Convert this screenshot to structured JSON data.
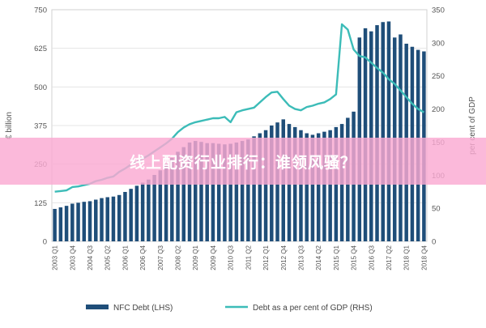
{
  "chart_data": {
    "type": "bar",
    "left_axis": {
      "label": "€ billion",
      "ylim": [
        0,
        750
      ],
      "ticks": [
        "0",
        "125",
        "250",
        "375",
        "500",
        "625",
        "750"
      ]
    },
    "right_axis": {
      "label": "per cent of GDP",
      "ylim": [
        0,
        350
      ],
      "ticks": [
        "0",
        "50",
        "100",
        "150",
        "200",
        "250",
        "300",
        "350"
      ]
    },
    "categories": [
      "2003 Q1",
      "2003 Q2",
      "2003 Q3",
      "2003 Q4",
      "2004 Q1",
      "2004 Q2",
      "2004 Q3",
      "2004 Q4",
      "2005 Q1",
      "2005 Q2",
      "2005 Q3",
      "2005 Q4",
      "2006 Q1",
      "2006 Q2",
      "2006 Q3",
      "2006 Q4",
      "2007 Q1",
      "2007 Q2",
      "2007 Q3",
      "2007 Q4",
      "2008 Q1",
      "2008 Q2",
      "2008 Q3",
      "2008 Q4",
      "2009 Q1",
      "2009 Q2",
      "2009 Q3",
      "2009 Q4",
      "2010 Q1",
      "2010 Q2",
      "2010 Q3",
      "2010 Q4",
      "2011 Q1",
      "2011 Q2",
      "2011 Q3",
      "2011 Q4",
      "2012 Q1",
      "2012 Q2",
      "2012 Q3",
      "2012 Q4",
      "2013 Q1",
      "2013 Q2",
      "2013 Q3",
      "2013 Q4",
      "2014 Q1",
      "2014 Q2",
      "2014 Q3",
      "2014 Q4",
      "2015 Q1",
      "2015 Q2",
      "2015 Q3",
      "2015 Q4",
      "2016 Q1",
      "2016 Q2",
      "2016 Q3",
      "2016 Q4",
      "2017 Q1",
      "2017 Q2",
      "2017 Q3",
      "2017 Q4",
      "2018 Q1",
      "2018 Q2",
      "2018 Q3",
      "2018 Q4"
    ],
    "x_tick_labels": [
      "2003 Q1",
      "2003 Q4",
      "2004 Q3",
      "2005 Q2",
      "2006 Q1",
      "2006 Q4",
      "2007 Q3",
      "2008 Q2",
      "2009 Q1",
      "2009 Q4",
      "2010 Q3",
      "2011 Q2",
      "2012 Q1",
      "2012 Q4",
      "2013 Q3",
      "2014 Q2",
      "2015 Q1",
      "2015 Q4",
      "2016 Q3",
      "2017 Q2",
      "2018 Q1",
      "2018 Q4"
    ],
    "series": [
      {
        "name": "NFC Debt (LHS)",
        "type": "bar",
        "axis": "left",
        "color": "#1f4e79",
        "values": [
          105,
          110,
          115,
          122,
          125,
          128,
          130,
          135,
          140,
          143,
          145,
          150,
          160,
          170,
          180,
          190,
          200,
          215,
          230,
          250,
          270,
          290,
          305,
          320,
          325,
          322,
          318,
          318,
          316,
          314,
          316,
          320,
          325,
          330,
          340,
          350,
          360,
          375,
          385,
          395,
          380,
          370,
          360,
          350,
          345,
          350,
          355,
          360,
          370,
          380,
          400,
          420,
          660,
          690,
          680,
          700,
          710,
          712,
          660,
          670,
          640,
          630,
          620,
          615
        ]
      },
      {
        "name": "Debt as a per cent of GDP (RHS)",
        "type": "line",
        "axis": "right",
        "color": "#3cbcb8",
        "values": [
          75,
          76,
          77,
          82,
          83,
          85,
          87,
          91,
          93,
          96,
          98,
          105,
          110,
          116,
          120,
          125,
          130,
          136,
          142,
          148,
          155,
          165,
          172,
          177,
          180,
          182,
          184,
          186,
          186,
          188,
          180,
          195,
          198,
          200,
          202,
          210,
          218,
          225,
          226,
          215,
          205,
          200,
          198,
          203,
          205,
          208,
          210,
          215,
          222,
          328,
          320,
          290,
          280,
          278,
          270,
          262,
          255,
          245,
          238,
          228,
          218,
          208,
          200,
          195
        ]
      }
    ],
    "legend_position": "bottom"
  },
  "overlay": {
    "text": "线上配资行业排行：谁领风骚？"
  }
}
